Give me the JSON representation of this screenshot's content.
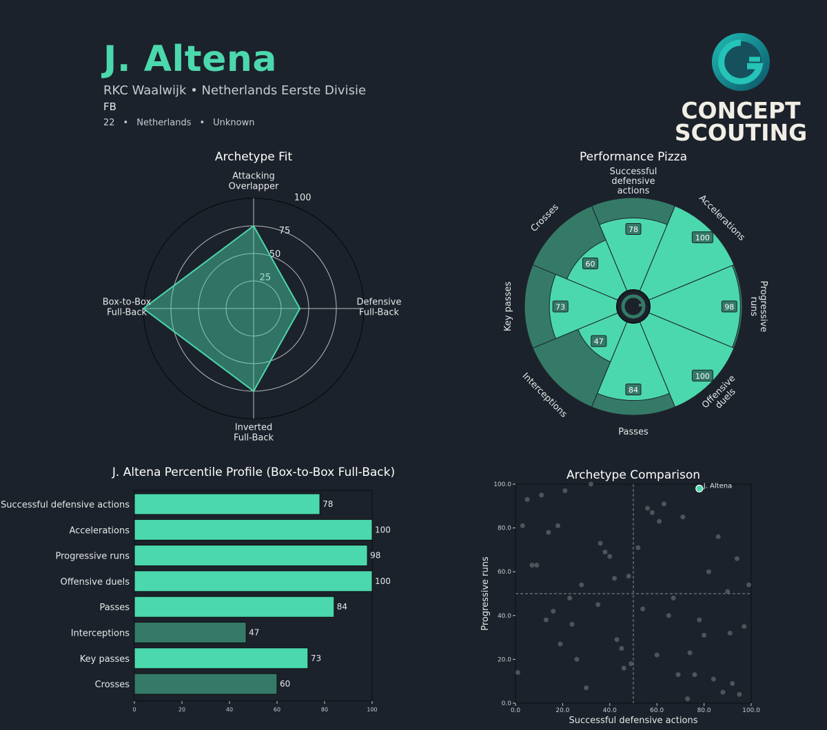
{
  "header": {
    "name": "J. Altena",
    "club_line": "RKC Waalwijk • Netherlands Eerste Divisie",
    "position": "FB",
    "age": "22",
    "nationality": "Netherlands",
    "foot": "Unknown",
    "separator": "•"
  },
  "logo": {
    "line1": "CONCEPT",
    "line2": "SCOUTING",
    "icon": "concept-scouting-g-icon"
  },
  "colors": {
    "background": "#1c222b",
    "accent": "#4cd8ad",
    "accent_dark": "#357a67",
    "text": "#e6e8ea"
  },
  "chart_data": [
    {
      "type": "radar",
      "title": "Archetype Fit",
      "axes": [
        "Attacking\nOverlapper",
        "Defensive\nFull-Back",
        "Inverted\nFull-Back",
        "Box-to-Box\nFull-Back"
      ],
      "values": [
        75,
        42,
        75,
        100
      ],
      "rmax": 100,
      "ring_labels": [
        "25",
        "50",
        "75",
        "100"
      ],
      "ring_values": [
        25,
        50,
        75,
        100
      ]
    },
    {
      "type": "pie",
      "title": "Performance Pizza",
      "categories": [
        "Successful\ndefensive\nactions",
        "Accelerations",
        "Progressive\nruns",
        "Offensive\nduels",
        "Passes",
        "Interceptions",
        "Key passes",
        "Crosses"
      ],
      "values": [
        78,
        100,
        98,
        100,
        84,
        47,
        73,
        60
      ],
      "value_labels": [
        "78",
        "100",
        "98",
        "100",
        "84",
        "47",
        "73",
        "60"
      ],
      "max": 100
    },
    {
      "type": "bar",
      "orientation": "horizontal",
      "title": "J. Altena Percentile Profile (Box-to-Box Full-Back)",
      "categories": [
        "Successful defensive actions",
        "Accelerations",
        "Progressive runs",
        "Offensive duels",
        "Passes",
        "Interceptions",
        "Key passes",
        "Crosses"
      ],
      "values": [
        78,
        100,
        98,
        100,
        84,
        47,
        73,
        60
      ],
      "value_labels": [
        "78",
        "100",
        "98",
        "100",
        "84",
        "47",
        "73",
        "60"
      ],
      "highlight": [
        true,
        true,
        true,
        true,
        true,
        false,
        true,
        false
      ],
      "xlim": [
        0,
        100
      ],
      "xticks": [
        "0",
        "20",
        "40",
        "60",
        "80",
        "100"
      ],
      "xtick_values": [
        0,
        20,
        40,
        60,
        80,
        100
      ]
    },
    {
      "type": "scatter",
      "title": "Archetype Comparison",
      "xlabel": "Successful defensive actions",
      "ylabel": "Progressive runs",
      "xlim": [
        0,
        100
      ],
      "ylim": [
        0,
        100
      ],
      "xticks": [
        "0.0",
        "20.0",
        "40.0",
        "60.0",
        "80.0",
        "100.0"
      ],
      "yticks": [
        "0.0",
        "20.0",
        "40.0",
        "60.0",
        "80.0",
        "100.0"
      ],
      "tick_values": [
        0,
        20,
        40,
        60,
        80,
        100
      ],
      "reference_lines": {
        "x": 50,
        "y": 50
      },
      "highlight": {
        "name": "J. Altena",
        "x": 78,
        "y": 98
      },
      "points": [
        [
          1,
          14
        ],
        [
          3,
          81
        ],
        [
          5,
          93
        ],
        [
          7,
          63
        ],
        [
          9,
          63
        ],
        [
          11,
          95
        ],
        [
          13,
          38
        ],
        [
          14,
          78
        ],
        [
          16,
          42
        ],
        [
          18,
          81
        ],
        [
          19,
          27
        ],
        [
          21,
          97
        ],
        [
          23,
          48
        ],
        [
          24,
          36
        ],
        [
          26,
          20
        ],
        [
          28,
          54
        ],
        [
          30,
          7
        ],
        [
          32,
          100
        ],
        [
          35,
          45
        ],
        [
          36,
          73
        ],
        [
          38,
          69
        ],
        [
          40,
          67
        ],
        [
          42,
          57
        ],
        [
          43,
          29
        ],
        [
          45,
          25
        ],
        [
          46,
          16
        ],
        [
          48,
          58
        ],
        [
          49,
          18
        ],
        [
          52,
          71
        ],
        [
          54,
          43
        ],
        [
          56,
          89
        ],
        [
          58,
          87
        ],
        [
          60,
          22
        ],
        [
          61,
          83
        ],
        [
          63,
          91
        ],
        [
          65,
          40
        ],
        [
          67,
          48
        ],
        [
          69,
          13
        ],
        [
          71,
          85
        ],
        [
          73,
          2
        ],
        [
          74,
          23
        ],
        [
          76,
          13
        ],
        [
          78,
          38
        ],
        [
          80,
          31
        ],
        [
          82,
          60
        ],
        [
          84,
          11
        ],
        [
          86,
          76
        ],
        [
          88,
          5
        ],
        [
          90,
          51
        ],
        [
          91,
          32
        ],
        [
          92,
          9
        ],
        [
          94,
          66
        ],
        [
          95,
          4
        ],
        [
          97,
          35
        ],
        [
          99,
          54
        ]
      ]
    }
  ]
}
